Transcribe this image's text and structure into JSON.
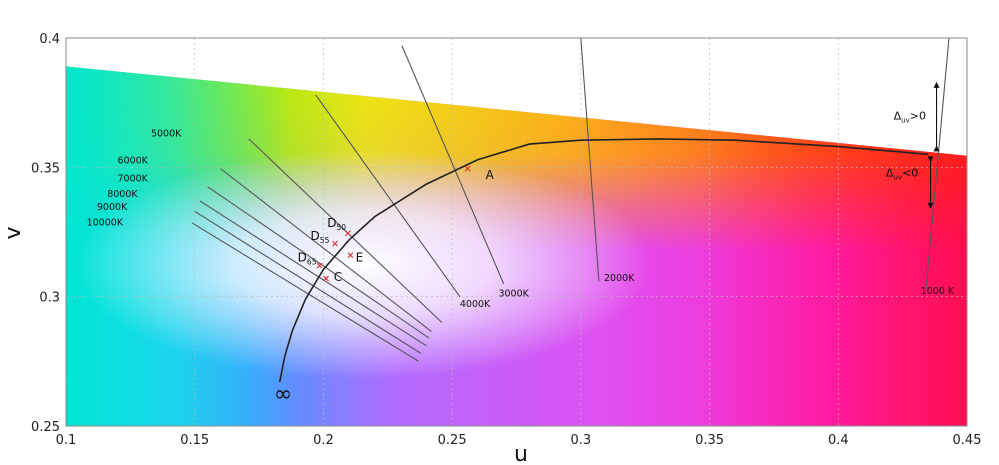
{
  "chart_data": {
    "type": "line",
    "title": "",
    "xlabel": "u",
    "ylabel": "v",
    "xlim": [
      0.1,
      0.45
    ],
    "ylim": [
      0.25,
      0.4
    ],
    "grid": true,
    "x_ticks": [
      "0.1",
      "0.15",
      "0.2",
      "0.25",
      "0.3",
      "0.35",
      "0.4",
      "0.45"
    ],
    "y_ticks": [
      "0.25",
      "0.3",
      "0.35",
      "0.4"
    ],
    "x_tick_values": [
      0.1,
      0.15,
      0.2,
      0.25,
      0.3,
      0.35,
      0.4,
      0.45
    ],
    "y_tick_values": [
      0.25,
      0.3,
      0.35,
      0.4
    ],
    "background": "CIE 1960 UCS chromaticity colour gamut",
    "planckian_locus": {
      "points": [
        [
          0.435,
          0.355
        ],
        [
          0.4,
          0.358
        ],
        [
          0.36,
          0.3605
        ],
        [
          0.33,
          0.361
        ],
        [
          0.3,
          0.3605
        ],
        [
          0.28,
          0.359
        ],
        [
          0.26,
          0.353
        ],
        [
          0.24,
          0.3435
        ],
        [
          0.22,
          0.331
        ],
        [
          0.21,
          0.322
        ],
        [
          0.2,
          0.3105
        ],
        [
          0.193,
          0.299
        ],
        [
          0.188,
          0.287
        ],
        [
          0.185,
          0.277
        ],
        [
          0.183,
          0.267
        ]
      ],
      "end_label": "∞"
    },
    "isotherms": [
      {
        "label": "1000 K",
        "line": [
          [
            0.443,
            0.4
          ],
          [
            0.434,
            0.302
          ]
        ],
        "label_at": [
          0.432,
          0.301
        ]
      },
      {
        "label": "2000K",
        "line": [
          [
            0.3,
            0.4
          ],
          [
            0.307,
            0.306
          ]
        ],
        "label_at": [
          0.309,
          0.306
        ]
      },
      {
        "label": "3000K",
        "line": [
          [
            0.2305,
            0.397
          ],
          [
            0.27,
            0.305
          ]
        ],
        "label_at": [
          0.268,
          0.3
        ]
      },
      {
        "label": "4000K",
        "line": [
          [
            0.197,
            0.378
          ],
          [
            0.253,
            0.3
          ]
        ],
        "label_at": [
          0.253,
          0.296
        ]
      },
      {
        "label": "5000K",
        "line": [
          [
            0.171,
            0.361
          ],
          [
            0.246,
            0.29
          ]
        ],
        "label_at": [
          0.133,
          0.362
        ]
      },
      {
        "label": "6000K",
        "line": [
          [
            0.16,
            0.3495
          ],
          [
            0.242,
            0.2865
          ]
        ],
        "label_at": [
          0.12,
          0.3515
        ]
      },
      {
        "label": "7000K",
        "line": [
          [
            0.155,
            0.3425
          ],
          [
            0.241,
            0.284
          ]
        ],
        "label_at": [
          0.12,
          0.3445
        ]
      },
      {
        "label": "8000K",
        "line": [
          [
            0.152,
            0.337
          ],
          [
            0.24,
            0.281
          ]
        ],
        "label_at": [
          0.116,
          0.3385
        ]
      },
      {
        "label": "9000K",
        "line": [
          [
            0.15,
            0.333
          ],
          [
            0.238,
            0.278
          ]
        ],
        "label_at": [
          0.112,
          0.3335
        ]
      },
      {
        "label": "10000K",
        "line": [
          [
            0.149,
            0.3285
          ],
          [
            0.237,
            0.275
          ]
        ],
        "label_at": [
          0.108,
          0.3275
        ]
      }
    ],
    "points": [
      {
        "name": "A",
        "u": 0.256,
        "v": 0.3495,
        "label_dx": 0.007,
        "label_dy": -0.004
      },
      {
        "name": "D",
        "sub": "50",
        "u": 0.2095,
        "v": 0.3245,
        "label_dx": -0.008,
        "label_dy": 0.0025
      },
      {
        "name": "D",
        "sub": "55",
        "u": 0.2045,
        "v": 0.3205,
        "label_dx": -0.0095,
        "label_dy": 0.0015
      },
      {
        "name": "E",
        "u": 0.2105,
        "v": 0.316,
        "label_dx": 0.002,
        "label_dy": -0.0025
      },
      {
        "name": "D",
        "sub": "65",
        "u": 0.1985,
        "v": 0.312,
        "label_dx": -0.0085,
        "label_dy": 0.0015
      },
      {
        "name": "C",
        "u": 0.201,
        "v": 0.307,
        "label_dx": 0.003,
        "label_dy": -0.001
      }
    ],
    "duv_annotations": [
      {
        "label": "Δ",
        "sub": "uv",
        "suffix": ">0"
      },
      {
        "label": "Δ",
        "sub": "uv",
        "suffix": "<0"
      }
    ]
  }
}
